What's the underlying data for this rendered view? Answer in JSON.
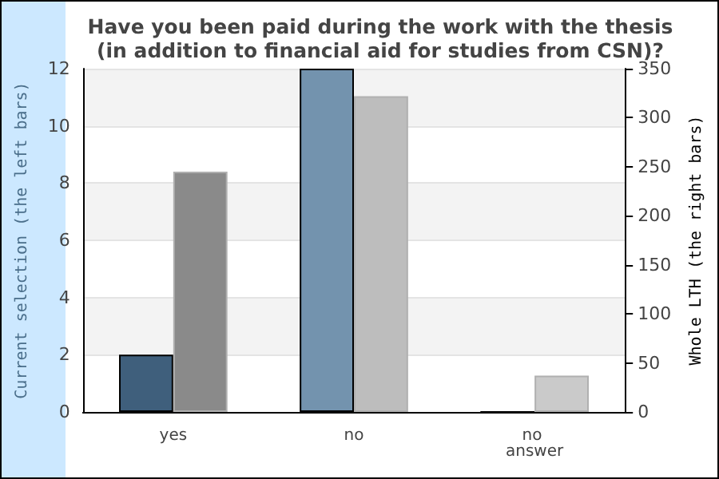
{
  "chart_data": {
    "type": "bar",
    "title": "Have you been paid during the work with the thesis\n(in addition to financial aid for studies from CSN)?",
    "ylabel": "Current selection (the left bars)",
    "y2label": "Whole LTH (the right bars)",
    "categories": [
      "yes",
      "no",
      "no answer"
    ],
    "series": [
      {
        "colors": [
          "#3f5f7c",
          "#7393ae",
          "#7393ae"
        ],
        "values": [
          2,
          12,
          0
        ]
      },
      {
        "colors": [
          "#8a8a8a",
          "#bdbdbd",
          "#cacaca"
        ],
        "values": [
          245,
          322,
          37
        ],
        "axis": "y2"
      }
    ],
    "ylim": [
      0,
      12
    ],
    "yticks": [
      0,
      2,
      4,
      6,
      8,
      10,
      12
    ],
    "y2lim": [
      0,
      350
    ],
    "y2ticks": [
      0,
      50,
      100,
      150,
      200,
      250,
      300,
      350
    ],
    "grid": "y"
  }
}
